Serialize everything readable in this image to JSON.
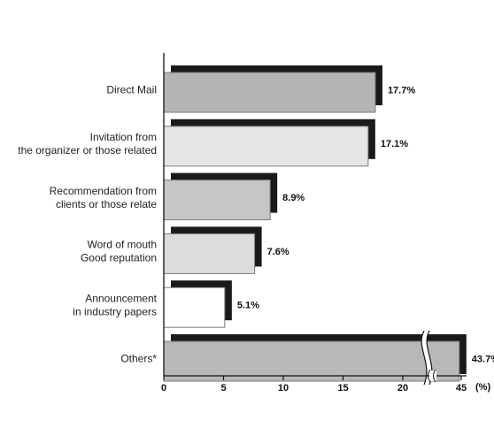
{
  "chart_data": {
    "type": "bar",
    "orientation": "horizontal",
    "categories": [
      [
        "Direct Mail"
      ],
      [
        "Invitation from",
        "the organizer or those related"
      ],
      [
        "Recommendation from",
        "clients or those relate"
      ],
      [
        "Word of mouth",
        "Good reputation"
      ],
      [
        "Announcement",
        "in industry papers"
      ],
      [
        "Others*"
      ]
    ],
    "values": [
      17.7,
      17.1,
      8.9,
      7.6,
      5.1,
      43.7
    ],
    "value_labels": [
      "17.7%",
      "17.1%",
      "8.9%",
      "7.6%",
      "5.1%",
      "43.7%"
    ],
    "x_ticks": [
      "0",
      "5",
      "10",
      "15",
      "20",
      "45"
    ],
    "x_tick_values": [
      0,
      5,
      10,
      15,
      20,
      45
    ],
    "x_unit": "(%)",
    "xlim": [
      0,
      45
    ],
    "axis_break": true,
    "grid": false,
    "colors": {
      "bar_fills": [
        "#b5b5b5",
        "#e5e5e5",
        "#c6c6c6",
        "#dcdcdc",
        "#ffffff",
        "#b8b8b8"
      ],
      "shadow": "#1a1a1a",
      "bar_stroke": "#7a7a7a",
      "axis": "#111111"
    }
  }
}
